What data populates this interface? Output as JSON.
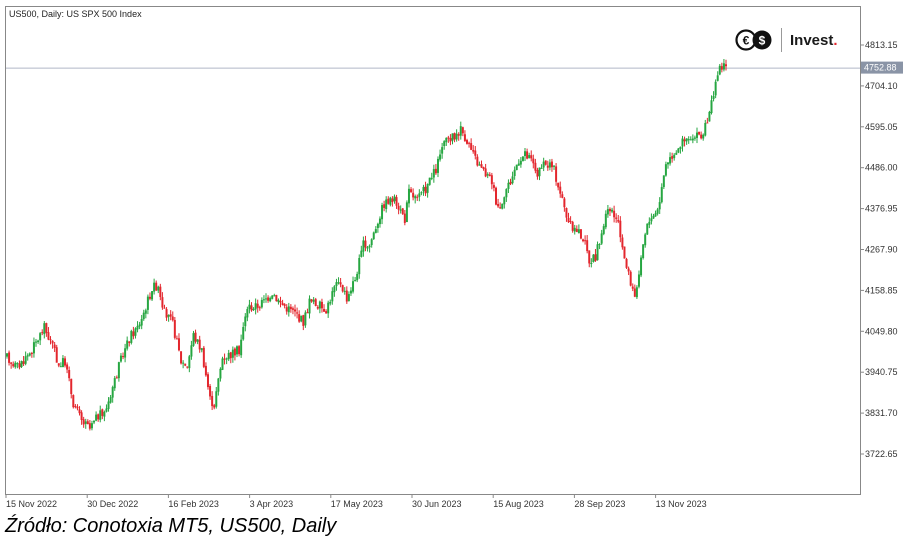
{
  "chart_data": {
    "type": "candlestick",
    "title": "US500, Daily:  US SPX 500 Index",
    "ylim": [
      3650,
      4900
    ],
    "y_ticks": [
      "4813.15",
      "4704.10",
      "4595.05",
      "4486.00",
      "4376.95",
      "4267.90",
      "4158.85",
      "4049.80",
      "3940.75",
      "3831.70",
      "3722.65"
    ],
    "x_ticks": [
      "15 Nov 2022",
      "30 Dec 2022",
      "16 Feb 2023",
      "3 Apr 2023",
      "17 May 2023",
      "30 Jun 2023",
      "15 Aug 2023",
      "28 Sep 2023",
      "13 Nov 2023"
    ],
    "current_price": "4752.88",
    "current_price_value": 4752.88,
    "colors": {
      "up": "#26a641",
      "down": "#e3262d",
      "axis": "#888888",
      "price_line": "#b0b8c8",
      "price_badge": "#8a94a6"
    },
    "path_points": [
      [
        0,
        3980
      ],
      [
        5,
        3955
      ],
      [
        12,
        4000
      ],
      [
        18,
        4060
      ],
      [
        22,
        4010
      ],
      [
        25,
        3960
      ],
      [
        28,
        3970
      ],
      [
        32,
        3860
      ],
      [
        36,
        3810
      ],
      [
        40,
        3790
      ],
      [
        44,
        3825
      ],
      [
        47,
        3830
      ],
      [
        52,
        3920
      ],
      [
        56,
        3990
      ],
      [
        60,
        4040
      ],
      [
        63,
        4060
      ],
      [
        66,
        4100
      ],
      [
        70,
        4165
      ],
      [
        73,
        4175
      ],
      [
        76,
        4100
      ],
      [
        80,
        4070
      ],
      [
        84,
        3970
      ],
      [
        87,
        3960
      ],
      [
        90,
        4040
      ],
      [
        94,
        4000
      ],
      [
        98,
        3870
      ],
      [
        100,
        3855
      ],
      [
        104,
        3980
      ],
      [
        108,
        3990
      ],
      [
        112,
        4000
      ],
      [
        116,
        4115
      ],
      [
        120,
        4115
      ],
      [
        124,
        4130
      ],
      [
        128,
        4155
      ],
      [
        132,
        4125
      ],
      [
        136,
        4110
      ],
      [
        140,
        4095
      ],
      [
        143,
        4075
      ],
      [
        146,
        4130
      ],
      [
        150,
        4120
      ],
      [
        154,
        4110
      ],
      [
        158,
        4165
      ],
      [
        161,
        4180
      ],
      [
        164,
        4140
      ],
      [
        168,
        4190
      ],
      [
        172,
        4280
      ],
      [
        175,
        4280
      ],
      [
        178,
        4330
      ],
      [
        182,
        4390
      ],
      [
        186,
        4400
      ],
      [
        188,
        4395
      ],
      [
        192,
        4350
      ],
      [
        194,
        4420
      ],
      [
        198,
        4400
      ],
      [
        202,
        4430
      ],
      [
        204,
        4450
      ],
      [
        207,
        4480
      ],
      [
        210,
        4540
      ],
      [
        213,
        4560
      ],
      [
        216,
        4570
      ],
      [
        219,
        4590
      ],
      [
        222,
        4560
      ],
      [
        225,
        4520
      ],
      [
        228,
        4490
      ],
      [
        231,
        4470
      ],
      [
        234,
        4450
      ],
      [
        236,
        4400
      ],
      [
        238,
        4380
      ],
      [
        240,
        4420
      ],
      [
        243,
        4450
      ],
      [
        247,
        4510
      ],
      [
        250,
        4520
      ],
      [
        253,
        4505
      ],
      [
        256,
        4470
      ],
      [
        259,
        4490
      ],
      [
        262,
        4495
      ],
      [
        264,
        4480
      ],
      [
        267,
        4420
      ],
      [
        270,
        4360
      ],
      [
        272,
        4330
      ],
      [
        275,
        4320
      ],
      [
        278,
        4300
      ],
      [
        281,
        4240
      ],
      [
        284,
        4250
      ],
      [
        286,
        4290
      ],
      [
        289,
        4360
      ],
      [
        292,
        4370
      ],
      [
        295,
        4330
      ],
      [
        297,
        4280
      ],
      [
        299,
        4220
      ],
      [
        301,
        4180
      ],
      [
        303,
        4150
      ],
      [
        305,
        4190
      ],
      [
        307,
        4280
      ],
      [
        309,
        4330
      ],
      [
        311,
        4360
      ],
      [
        313,
        4365
      ],
      [
        315,
        4400
      ],
      [
        318,
        4500
      ],
      [
        321,
        4520
      ],
      [
        325,
        4550
      ],
      [
        329,
        4560
      ],
      [
        332,
        4560
      ],
      [
        334,
        4575
      ],
      [
        336,
        4575
      ],
      [
        339,
        4630
      ],
      [
        342,
        4720
      ],
      [
        345,
        4760
      ],
      [
        347,
        4752
      ]
    ]
  },
  "brand": {
    "name": "Invest",
    "dot": "."
  },
  "caption": "Źródło: Conotoxia MT5, US500, Daily"
}
